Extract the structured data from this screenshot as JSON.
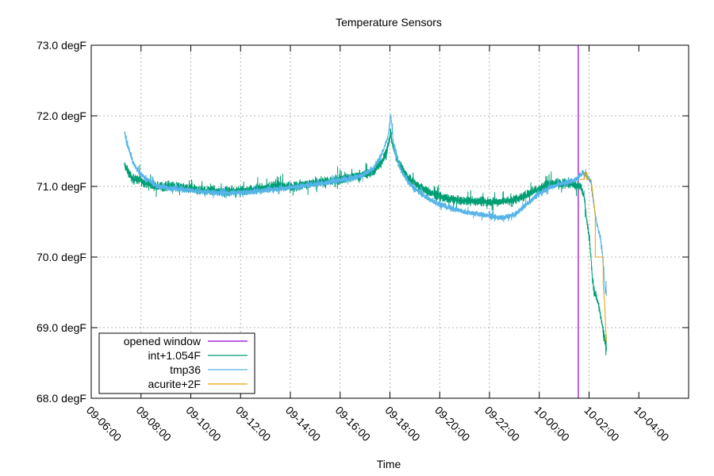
{
  "chart_data": {
    "type": "line",
    "title": "Temperature Sensors",
    "xlabel": "Time",
    "ylabel": "",
    "ylim": [
      68.0,
      73.0
    ],
    "xlim_minutes": [
      0,
      1440
    ],
    "grid": true,
    "legend_position": "bottom-left",
    "y_ticks": [
      {
        "value": 68.0,
        "label": "68.0 degF"
      },
      {
        "value": 69.0,
        "label": "69.0 degF"
      },
      {
        "value": 70.0,
        "label": "70.0 degF"
      },
      {
        "value": 71.0,
        "label": "71.0 degF"
      },
      {
        "value": 72.0,
        "label": "72.0 degF"
      },
      {
        "value": 73.0,
        "label": "73.0 degF"
      }
    ],
    "x_ticks": [
      {
        "value": 0,
        "label": "09-06:00"
      },
      {
        "value": 120,
        "label": "09-08:00"
      },
      {
        "value": 240,
        "label": "09-10:00"
      },
      {
        "value": 360,
        "label": "09-12:00"
      },
      {
        "value": 480,
        "label": "09-14:00"
      },
      {
        "value": 600,
        "label": "09-16:00"
      },
      {
        "value": 720,
        "label": "09-18:00"
      },
      {
        "value": 840,
        "label": "09-20:00"
      },
      {
        "value": 960,
        "label": "09-22:00"
      },
      {
        "value": 1080,
        "label": "10-00:00"
      },
      {
        "value": 1200,
        "label": "10-02:00"
      },
      {
        "value": 1320,
        "label": "10-04:00"
      }
    ],
    "opened_window_at": 1174,
    "series": [
      {
        "name": "opened window",
        "color": "#9400d3",
        "kind": "vline"
      },
      {
        "name": "int+1.054F",
        "color": "#009e73",
        "noise": 0.09,
        "points": [
          [
            80,
            71.3
          ],
          [
            90,
            71.2
          ],
          [
            100,
            71.1
          ],
          [
            110,
            71.1
          ],
          [
            130,
            71.05
          ],
          [
            160,
            71.0
          ],
          [
            200,
            71.0
          ],
          [
            260,
            70.95
          ],
          [
            320,
            70.93
          ],
          [
            380,
            70.95
          ],
          [
            440,
            71.0
          ],
          [
            480,
            71.0
          ],
          [
            540,
            71.05
          ],
          [
            600,
            71.1
          ],
          [
            640,
            71.15
          ],
          [
            680,
            71.2
          ],
          [
            700,
            71.35
          ],
          [
            715,
            71.55
          ],
          [
            722,
            71.75
          ],
          [
            728,
            71.55
          ],
          [
            740,
            71.35
          ],
          [
            760,
            71.15
          ],
          [
            790,
            71.0
          ],
          [
            820,
            70.9
          ],
          [
            860,
            70.82
          ],
          [
            900,
            70.8
          ],
          [
            960,
            70.78
          ],
          [
            1010,
            70.8
          ],
          [
            1040,
            70.85
          ],
          [
            1060,
            70.92
          ],
          [
            1090,
            71.0
          ],
          [
            1120,
            71.05
          ],
          [
            1150,
            71.05
          ],
          [
            1180,
            71.0
          ],
          [
            1188,
            70.85
          ],
          [
            1195,
            70.5
          ],
          [
            1202,
            70.2
          ],
          [
            1208,
            69.7
          ],
          [
            1213,
            69.5
          ],
          [
            1220,
            69.4
          ],
          [
            1227,
            69.2
          ],
          [
            1233,
            69.0
          ],
          [
            1240,
            68.75
          ],
          [
            1242,
            68.7
          ]
        ]
      },
      {
        "name": "tmp36",
        "color": "#56b4e9",
        "noise": 0.055,
        "points": [
          [
            80,
            71.8
          ],
          [
            85,
            71.62
          ],
          [
            90,
            71.55
          ],
          [
            100,
            71.35
          ],
          [
            115,
            71.2
          ],
          [
            130,
            71.12
          ],
          [
            160,
            71.0
          ],
          [
            200,
            70.97
          ],
          [
            260,
            70.93
          ],
          [
            320,
            70.9
          ],
          [
            380,
            70.92
          ],
          [
            440,
            70.96
          ],
          [
            500,
            71.0
          ],
          [
            560,
            71.05
          ],
          [
            610,
            71.1
          ],
          [
            650,
            71.15
          ],
          [
            680,
            71.25
          ],
          [
            700,
            71.45
          ],
          [
            715,
            71.7
          ],
          [
            722,
            72.0
          ],
          [
            725,
            71.85
          ],
          [
            730,
            71.55
          ],
          [
            745,
            71.25
          ],
          [
            765,
            71.05
          ],
          [
            790,
            70.92
          ],
          [
            820,
            70.8
          ],
          [
            860,
            70.7
          ],
          [
            900,
            70.64
          ],
          [
            940,
            70.6
          ],
          [
            960,
            70.58
          ],
          [
            990,
            70.55
          ],
          [
            1020,
            70.6
          ],
          [
            1050,
            70.75
          ],
          [
            1080,
            70.9
          ],
          [
            1110,
            71.0
          ],
          [
            1140,
            71.05
          ],
          [
            1170,
            71.1
          ],
          [
            1185,
            71.2
          ],
          [
            1195,
            71.15
          ],
          [
            1205,
            71.05
          ],
          [
            1210,
            70.8
          ],
          [
            1218,
            70.5
          ],
          [
            1226,
            70.3
          ],
          [
            1232,
            70.05
          ],
          [
            1236,
            69.75
          ],
          [
            1239,
            69.5
          ],
          [
            1241,
            69.55
          ],
          [
            1242,
            69.45
          ]
        ]
      },
      {
        "name": "acurite+2F",
        "color": "#e69f00",
        "noise": 0,
        "points": [
          [
            1178,
            71.1
          ],
          [
            1188,
            71.1
          ],
          [
            1188,
            71.2
          ],
          [
            1194,
            71.2
          ],
          [
            1194,
            71.1
          ],
          [
            1205,
            71.1
          ],
          [
            1215,
            70.6
          ],
          [
            1215,
            70.0
          ],
          [
            1234,
            70.0
          ],
          [
            1234,
            69.6
          ],
          [
            1238,
            69.3
          ],
          [
            1240,
            69.0
          ],
          [
            1242,
            68.8
          ]
        ]
      }
    ]
  }
}
